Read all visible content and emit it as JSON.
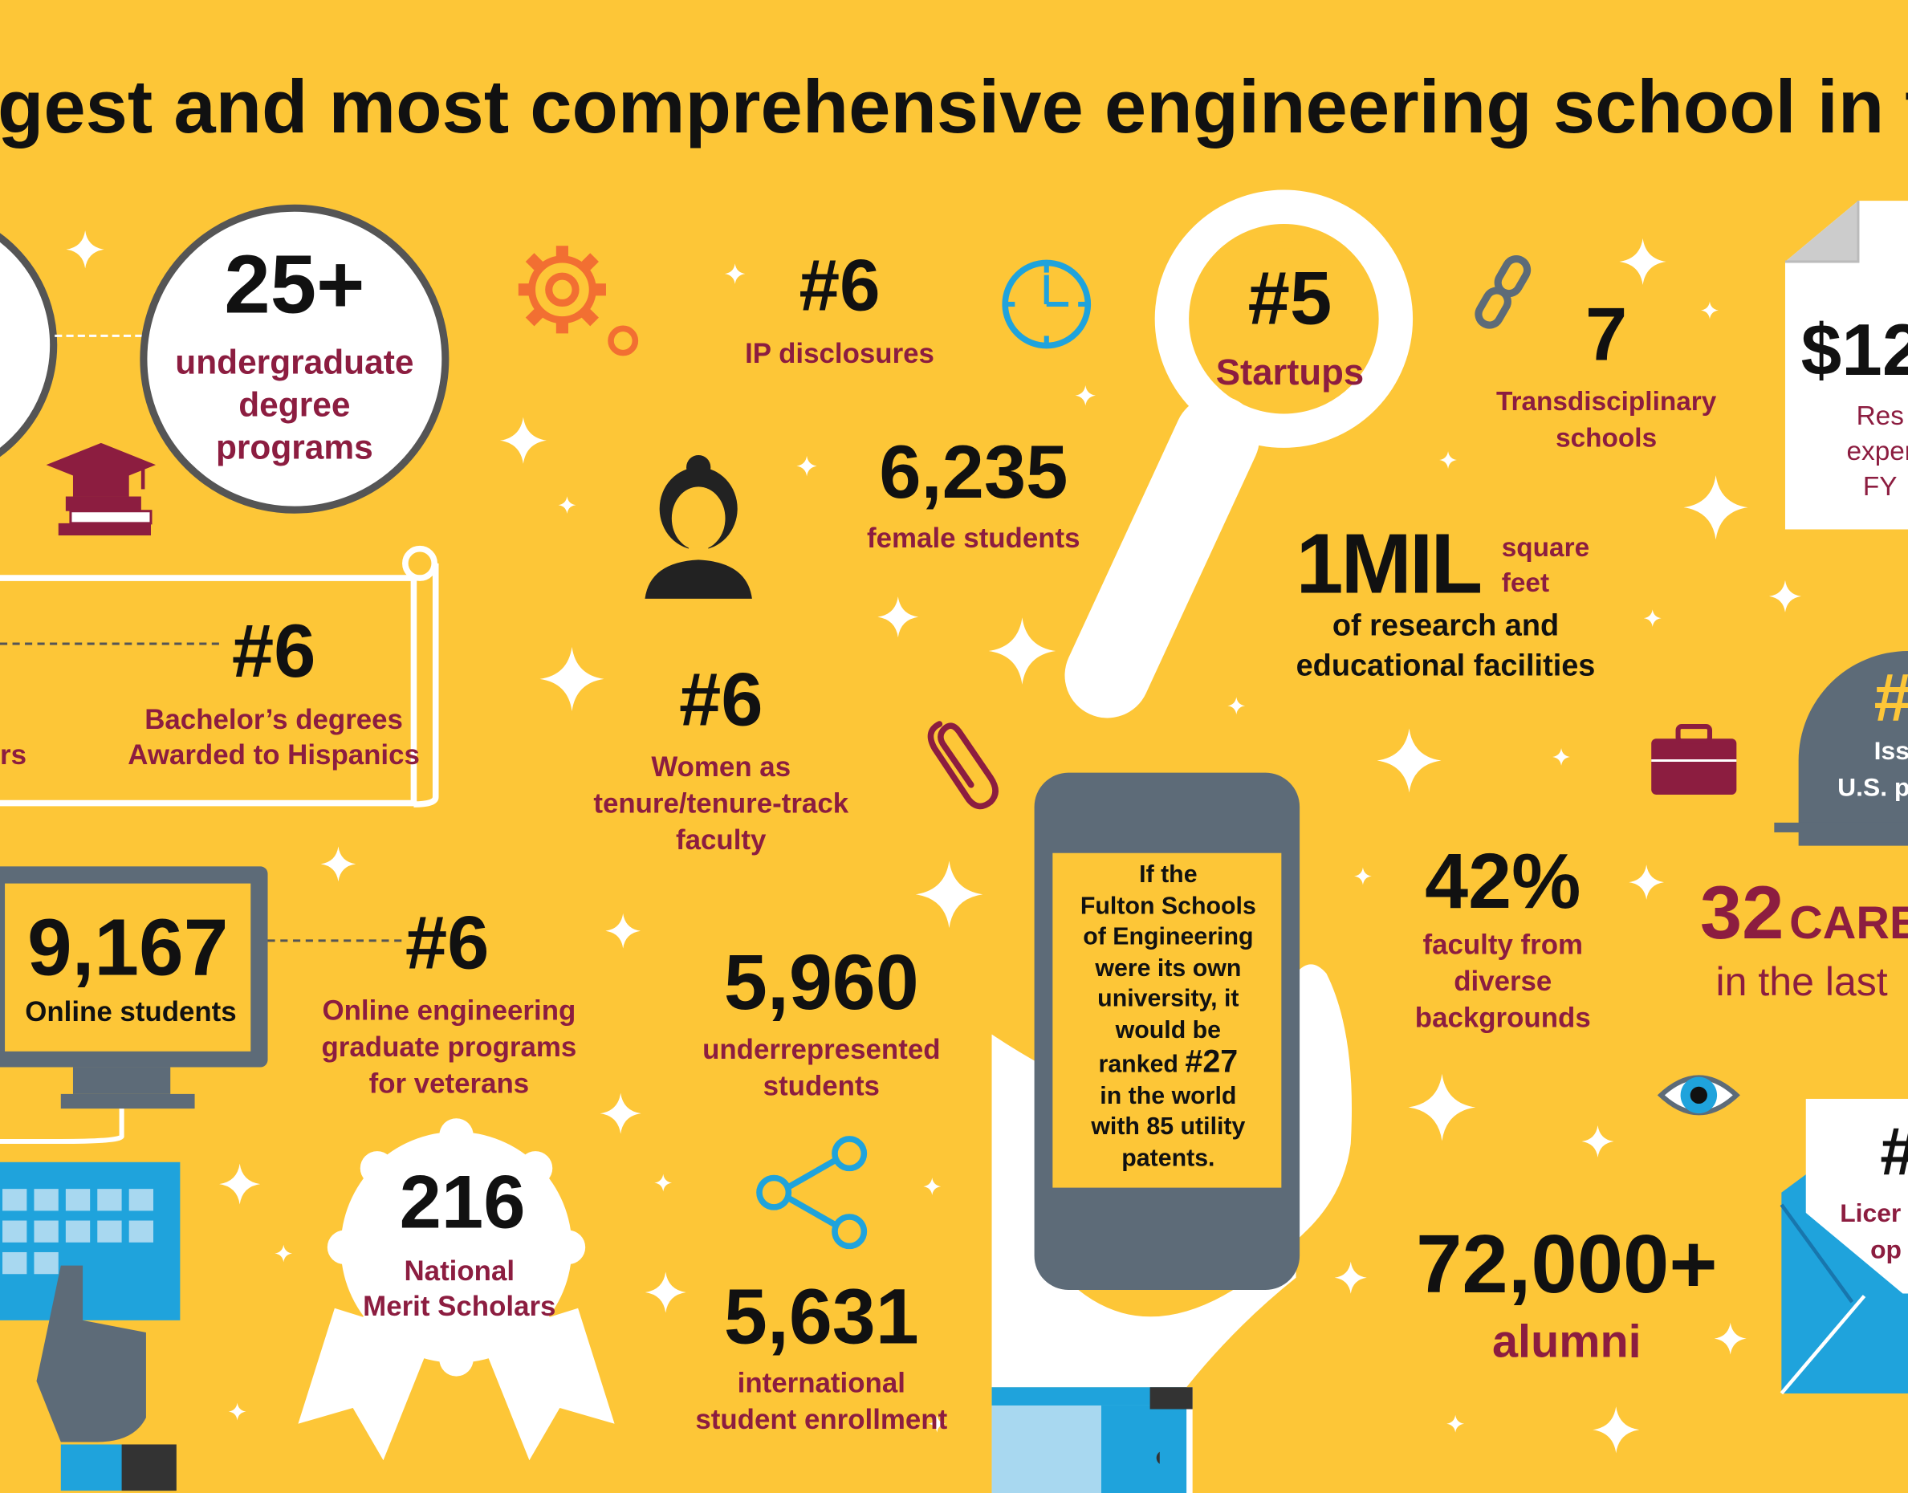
{
  "headline": "gest and most comprehensive engineering school in th",
  "colors": {
    "background": "#FDC637",
    "maroon": "#8C1D40",
    "dark": "#111111",
    "slate": "#5D6B78",
    "blue": "#1FA3DC",
    "orange": "#F26F32",
    "white": "#FFFFFF"
  },
  "icons": [
    "graduation-cap-icon",
    "books-icon",
    "gears-icon",
    "clock-icon",
    "woman-icon",
    "magnifier-icon",
    "chain-link-icon",
    "document-icon",
    "paperclip-icon",
    "monitor-icon",
    "keyboard-icon",
    "hand-icon",
    "share-icon",
    "smartphone-icon",
    "briefcase-icon",
    "eye-icon",
    "envelope-icon",
    "ribbon-icon",
    "sparkle-icon"
  ],
  "stats": {
    "undergrad": {
      "value": "25+",
      "label": "undergraduate degree programs"
    },
    "ip": {
      "value": "#6",
      "label": "IP disclosures"
    },
    "startups": {
      "value": "#5",
      "label": "Startups"
    },
    "transdisciplinary": {
      "value": "7",
      "label": "Transdisciplinary schools"
    },
    "research_exp": {
      "value": "$12",
      "label1": "Res",
      "label2": "exper",
      "label3": "FY"
    },
    "female": {
      "value": "6,235",
      "label": "female students"
    },
    "bachelors": {
      "value": "#6",
      "label1": "Bachelor’s degrees",
      "label2": "Awarded to Hispanics",
      "cut_label": "rs"
    },
    "sqft": {
      "value": "1MIL",
      "unit1": "square",
      "unit2": "feet",
      "label1": "of research and",
      "label2": "educational facilities"
    },
    "women_faculty": {
      "value": "#6",
      "label1": "Women as",
      "label2": "tenure/tenure-track",
      "label3": "faculty"
    },
    "patents_badge": {
      "value": "#",
      "label1": "Iss",
      "label2": "U.S. p"
    },
    "online": {
      "value": "9,167",
      "label": "Online students"
    },
    "veterans": {
      "value": "#6",
      "label1": "Online engineering",
      "label2": "graduate programs",
      "label3": "for veterans"
    },
    "underrep": {
      "value": "5,960",
      "label1": "underrepresented",
      "label2": "students"
    },
    "phone": {
      "line1": "If the",
      "line2": "Fulton Schools",
      "line3": "of Engineering",
      "line4": "were its own",
      "line5": "university, it",
      "line6": "would be",
      "line7a": "ranked",
      "line7b": "#27",
      "line8": "in the world",
      "line9": "with 85 utility",
      "line10": "patents."
    },
    "faculty_diverse": {
      "value": "42%",
      "label1": "faculty from",
      "label2": "diverse",
      "label3": "backgrounds"
    },
    "careers": {
      "value": "32",
      "word": "CARE",
      "line2": "in the last"
    },
    "merit": {
      "value": "216",
      "label1": "National",
      "label2": "Merit Scholars"
    },
    "international": {
      "value": "5,631",
      "label1": "international",
      "label2": "student enrollment"
    },
    "alumni": {
      "value": "72,000+",
      "label": "alumni"
    },
    "licenses": {
      "value": "#",
      "label1": "Licer",
      "label2": "op"
    }
  }
}
